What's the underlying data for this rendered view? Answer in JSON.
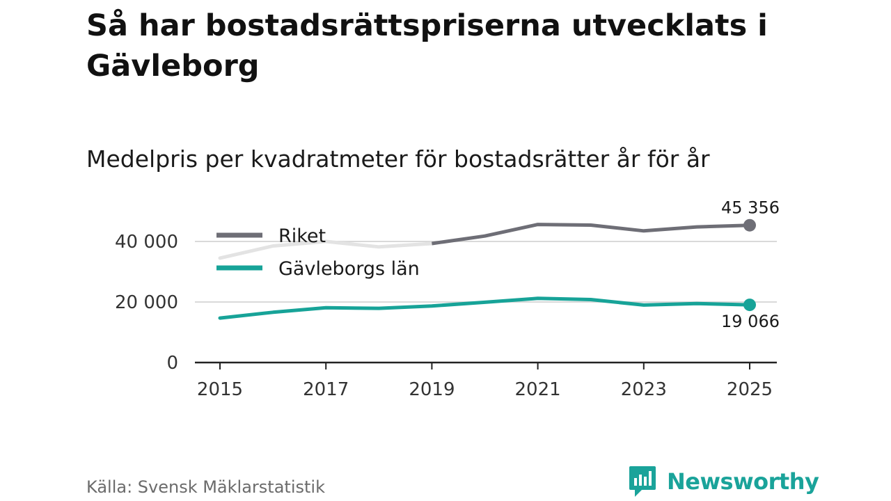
{
  "title": "Så har bostadsrättspriserna utvecklats i Gävleborg",
  "subtitle": "Medelpris per kvadratmeter för bostadsrätter år för år",
  "source": "Källa: Svensk Mäklarstatistik",
  "brand": {
    "name": "Newsworthy",
    "color": "#1aa39a"
  },
  "chart_data": {
    "type": "line",
    "title": "Medelpris per kvadratmeter för bostadsrätter år för år",
    "xlabel": "",
    "ylabel": "",
    "x": [
      2015,
      2016,
      2017,
      2018,
      2019,
      2020,
      2021,
      2022,
      2023,
      2024,
      2025
    ],
    "xticks": [
      2015,
      2017,
      2019,
      2021,
      2023,
      2025
    ],
    "xticklabels": [
      "2015",
      "2017",
      "2019",
      "2021",
      "2023",
      "2025"
    ],
    "ylim": [
      0,
      48000
    ],
    "yticks": [
      0,
      20000,
      40000
    ],
    "yticklabels": [
      "0",
      "20 000",
      "40 000"
    ],
    "grid": true,
    "legend": "top-left",
    "series": [
      {
        "name": "Riket",
        "color": "#6e6e76",
        "faded_color": "#e3e3e3",
        "faded_until": 2019,
        "values": [
          34500,
          38500,
          40000,
          38200,
          39300,
          41800,
          45600,
          45400,
          43500,
          44800,
          45356
        ],
        "end_label": "45 356",
        "end_label_position": "above"
      },
      {
        "name": "Gävleborgs län",
        "color": "#17a398",
        "values": [
          14700,
          16600,
          18100,
          17900,
          18700,
          19900,
          21200,
          20800,
          19000,
          19500,
          19066
        ],
        "end_label": "19 066",
        "end_label_position": "below"
      }
    ]
  }
}
